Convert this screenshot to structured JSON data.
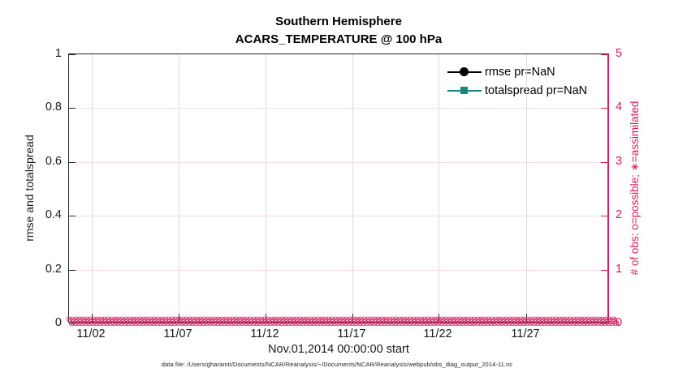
{
  "title": {
    "line1": "Southern Hemisphere",
    "line2": "ACARS_TEMPERATURE @ 100 hPa"
  },
  "axes": {
    "left": {
      "label": "rmse and totalspread",
      "ticks": [
        "0",
        "0.2",
        "0.4",
        "0.6",
        "0.8",
        "1"
      ]
    },
    "right": {
      "label": "# of obs: o=possible; ∗=assimilated",
      "ticks": [
        "0",
        "1",
        "2",
        "3",
        "4",
        "5"
      ],
      "color": "#d81b60"
    },
    "x": {
      "label": "Nov.01,2014 00:00:00 start",
      "ticks": [
        "11/02",
        "11/07",
        "11/12",
        "11/17",
        "11/22",
        "11/27"
      ]
    }
  },
  "legend": {
    "items": [
      {
        "label": "rmse pr=NaN",
        "color": "#000000",
        "marker": "filled-circle"
      },
      {
        "label": "totalspread pr=NaN",
        "color": "#12887f",
        "marker": "filled-square"
      }
    ]
  },
  "obs_band": {
    "glyph": "⊗",
    "repeat": 170,
    "color": "#d81b60",
    "meaning": "overlapping o (possible) and ∗ (assimilated) observation-count markers, all plotted at 0 on the right axis"
  },
  "caption": "data file: /Users/gharamti/Documents/NCAR/Reanalysis/~/Documents/NCAR/Reanalysis/webpub/obs_diag_output_2014-11.nc",
  "chart_data": {
    "type": "line",
    "title": "Southern Hemisphere — ACARS_TEMPERATURE @ 100 hPa",
    "xlabel": "Nov.01,2014 00:00:00 start",
    "ylabel_left": "rmse and totalspread",
    "ylabel_right": "# of obs: o=possible; ∗=assimilated",
    "x_tick_labels": [
      "11/02",
      "11/07",
      "11/12",
      "11/17",
      "11/22",
      "11/27"
    ],
    "x_range": "Nov 01 2014 – Dec 01 2014",
    "ylim_left": [
      0,
      1
    ],
    "yticks_left": [
      0,
      0.2,
      0.4,
      0.6,
      0.8,
      1
    ],
    "ylim_right": [
      0,
      5
    ],
    "yticks_right": [
      0,
      1,
      2,
      3,
      4,
      5
    ],
    "grid": "on (gray vertical x-grid, light pink horizontal y-grid)",
    "legend_position": "top-right inside axes, no box",
    "series": [
      {
        "name": "rmse pr=NaN",
        "axis": "left",
        "color": "#000000",
        "marker": "filled circle",
        "values": "NaN at all times (no curve drawn)"
      },
      {
        "name": "totalspread pr=NaN",
        "axis": "left",
        "color": "#12887f",
        "marker": "filled square",
        "values": "NaN at all times (no curve drawn)"
      },
      {
        "name": "# of obs possible (o)",
        "axis": "right",
        "color": "#d81b60",
        "marker": "open circle",
        "constant_value": 0
      },
      {
        "name": "# of obs assimilated (∗)",
        "axis": "right",
        "color": "#d81b60",
        "marker": "asterisk",
        "constant_value": 0
      }
    ]
  }
}
